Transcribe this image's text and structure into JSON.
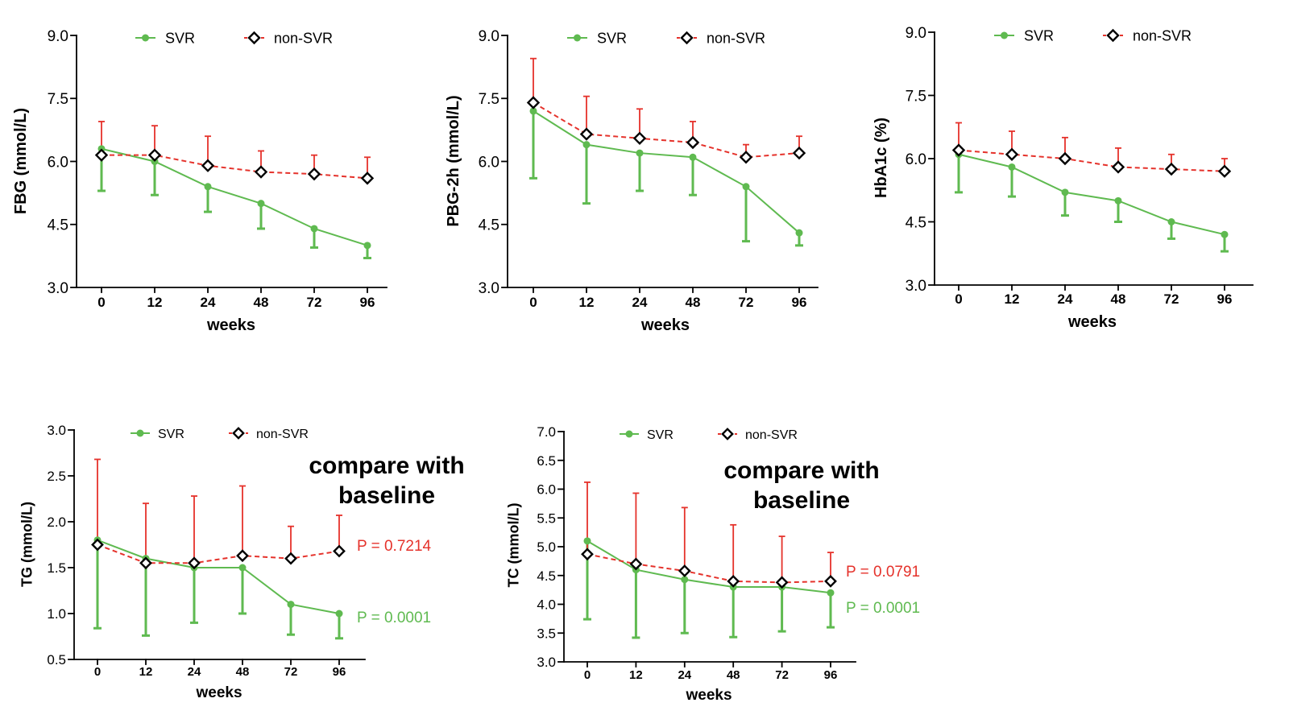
{
  "chart_data": [
    {
      "type": "line",
      "categories": [
        "0",
        "12",
        "24",
        "48",
        "72",
        "96"
      ],
      "xlabel": "weeks",
      "ylabel": "FBG (mmol/L)",
      "ylim": [
        3.0,
        9.0
      ],
      "yticks": [
        "3.0",
        "4.5",
        "6.0",
        "7.5",
        "9.0"
      ],
      "grid": false,
      "legend": "top",
      "series": [
        {
          "name": "SVR",
          "color": "#5fba50",
          "marker": "circle",
          "line_style": "solid",
          "values": [
            6.3,
            6.0,
            5.4,
            5.0,
            4.4,
            4.0
          ],
          "error_low": [
            5.3,
            5.2,
            4.8,
            4.4,
            3.95,
            3.7
          ]
        },
        {
          "name": "non-SVR",
          "color": "#e5322b",
          "marker": "diamond",
          "line_style": "dashed",
          "values": [
            6.15,
            6.15,
            5.9,
            5.75,
            5.7,
            5.6
          ],
          "error_high": [
            6.95,
            6.85,
            6.6,
            6.25,
            6.15,
            6.1
          ]
        }
      ]
    },
    {
      "type": "line",
      "categories": [
        "0",
        "12",
        "24",
        "48",
        "72",
        "96"
      ],
      "xlabel": "weeks",
      "ylabel": "PBG-2h (mmol/L)",
      "ylim": [
        3.0,
        9.0
      ],
      "yticks": [
        "3.0",
        "4.5",
        "6.0",
        "7.5",
        "9.0"
      ],
      "grid": false,
      "legend": "top",
      "series": [
        {
          "name": "SVR",
          "color": "#5fba50",
          "marker": "circle",
          "line_style": "solid",
          "values": [
            7.2,
            6.4,
            6.2,
            6.1,
            5.4,
            4.3
          ],
          "error_low": [
            5.6,
            5.0,
            5.3,
            5.2,
            4.1,
            4.0
          ]
        },
        {
          "name": "non-SVR",
          "color": "#e5322b",
          "marker": "diamond",
          "line_style": "dashed",
          "values": [
            7.4,
            6.65,
            6.55,
            6.45,
            6.1,
            6.2
          ],
          "error_high": [
            8.45,
            7.55,
            7.25,
            6.95,
            6.4,
            6.6
          ]
        }
      ]
    },
    {
      "type": "line",
      "categories": [
        "0",
        "12",
        "24",
        "48",
        "72",
        "96"
      ],
      "xlabel": "weeks",
      "ylabel": "HbA1c (%)",
      "ylim": [
        3.0,
        9.0
      ],
      "yticks": [
        "3.0",
        "4.5",
        "6.0",
        "7.5",
        "9.0"
      ],
      "grid": false,
      "legend": "top",
      "series": [
        {
          "name": "SVR",
          "color": "#5fba50",
          "marker": "circle",
          "line_style": "solid",
          "values": [
            6.1,
            5.8,
            5.2,
            5.0,
            4.5,
            4.2
          ],
          "error_low": [
            5.2,
            5.1,
            4.65,
            4.5,
            4.1,
            3.8
          ]
        },
        {
          "name": "non-SVR",
          "color": "#e5322b",
          "marker": "diamond",
          "line_style": "dashed",
          "values": [
            6.2,
            6.1,
            6.0,
            5.8,
            5.75,
            5.7
          ],
          "error_high": [
            6.85,
            6.65,
            6.5,
            6.25,
            6.1,
            6.0
          ]
        }
      ]
    },
    {
      "type": "line",
      "categories": [
        "0",
        "12",
        "24",
        "48",
        "72",
        "96"
      ],
      "xlabel": "weeks",
      "ylabel": "TG (mmol/L)",
      "ylim": [
        0.5,
        3.0
      ],
      "yticks": [
        "0.5",
        "1.0",
        "1.5",
        "2.0",
        "2.5",
        "3.0"
      ],
      "grid": false,
      "legend": "top",
      "series": [
        {
          "name": "SVR",
          "color": "#5fba50",
          "marker": "circle",
          "line_style": "solid",
          "values": [
            1.8,
            1.6,
            1.5,
            1.5,
            1.1,
            1.0
          ],
          "error_low": [
            0.84,
            0.76,
            0.9,
            1.0,
            0.77,
            0.73
          ]
        },
        {
          "name": "non-SVR",
          "color": "#e5322b",
          "marker": "diamond",
          "line_style": "dashed",
          "values": [
            1.75,
            1.55,
            1.55,
            1.63,
            1.6,
            1.68
          ],
          "error_high": [
            2.68,
            2.2,
            2.28,
            2.39,
            1.95,
            2.07
          ]
        }
      ],
      "note_lines": [
        "compare with",
        "baseline"
      ],
      "p_values": [
        {
          "text": "P = 0.7214",
          "color": "#e5322b"
        },
        {
          "text": "P = 0.0001",
          "color": "#5fba50"
        }
      ]
    },
    {
      "type": "line",
      "categories": [
        "0",
        "12",
        "24",
        "48",
        "72",
        "96"
      ],
      "xlabel": "weeks",
      "ylabel": "TC (mmol/L)",
      "ylim": [
        3.0,
        7.0
      ],
      "yticks": [
        "3.0",
        "3.5",
        "4.0",
        "4.5",
        "5.0",
        "5.5",
        "6.0",
        "6.5",
        "7.0"
      ],
      "grid": false,
      "legend": "top",
      "series": [
        {
          "name": "SVR",
          "color": "#5fba50",
          "marker": "circle",
          "line_style": "solid",
          "values": [
            5.1,
            4.6,
            4.43,
            4.3,
            4.3,
            4.2
          ],
          "error_low": [
            3.74,
            3.42,
            3.5,
            3.43,
            3.53,
            3.6
          ]
        },
        {
          "name": "non-SVR",
          "color": "#e5322b",
          "marker": "diamond",
          "line_style": "dashed",
          "values": [
            4.87,
            4.7,
            4.58,
            4.4,
            4.38,
            4.4
          ],
          "error_high": [
            6.12,
            5.93,
            5.68,
            5.38,
            5.18,
            4.9
          ]
        }
      ],
      "note_lines": [
        "compare with",
        "baseline"
      ],
      "p_values": [
        {
          "text": "P = 0.0791",
          "color": "#e5322b"
        },
        {
          "text": "P = 0.0001",
          "color": "#5fba50"
        }
      ]
    }
  ]
}
